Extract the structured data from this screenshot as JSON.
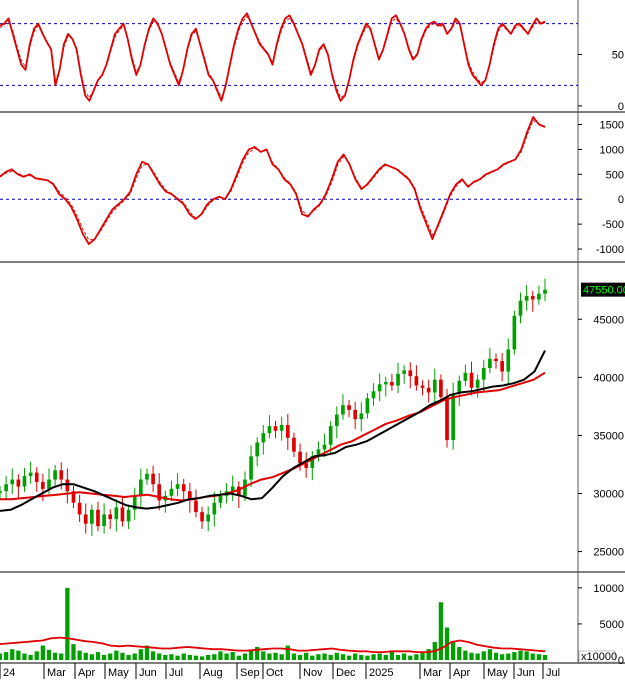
{
  "colors": {
    "background": "#ffffff",
    "panel_border": "#555555",
    "dashed_ref": "#0000cc",
    "indicator_line": "#e00000",
    "ma_slow": "#e00000",
    "ma_fast": "#000000",
    "candle_up": "#00a000",
    "candle_down": "#e00000",
    "price_badge_bg": "#000000",
    "price_badge_text": "#00ff00"
  },
  "x_axis": {
    "labels": [
      "24",
      "Mar",
      "Apr",
      "May",
      "Jun",
      "Jul",
      "Aug",
      "Sep",
      "Oct",
      "Nov",
      "Dec",
      "2025",
      "Mar",
      "Apr",
      "May",
      "Jun",
      "Jul"
    ]
  },
  "chart_data": [
    {
      "type": "line",
      "name": "oscillator",
      "y_ticks": [
        "50",
        "0"
      ],
      "ylim": [
        -3,
        100
      ],
      "ref_lines": [
        80,
        20
      ],
      "series": [
        {
          "style": "solid",
          "values": [
            78,
            80,
            85,
            70,
            55,
            40,
            35,
            60,
            75,
            80,
            70,
            62,
            55,
            20,
            35,
            60,
            70,
            65,
            55,
            30,
            10,
            5,
            15,
            25,
            30,
            40,
            55,
            70,
            75,
            80,
            65,
            45,
            30,
            40,
            60,
            75,
            85,
            80,
            70,
            55,
            40,
            30,
            20,
            35,
            55,
            70,
            75,
            60,
            45,
            30,
            25,
            15,
            5,
            20,
            40,
            60,
            75,
            85,
            90,
            80,
            70,
            60,
            55,
            50,
            40,
            60,
            75,
            85,
            88,
            80,
            70,
            60,
            45,
            30,
            40,
            55,
            60,
            50,
            30,
            15,
            5,
            10,
            25,
            45,
            60,
            70,
            80,
            75,
            60,
            45,
            55,
            70,
            85,
            88,
            80,
            70,
            55,
            45,
            50,
            65,
            75,
            80,
            82,
            78,
            80,
            70,
            75,
            85,
            80,
            60,
            40,
            30,
            25,
            20,
            25,
            40,
            60,
            75,
            80,
            75,
            70,
            78,
            80,
            75,
            70,
            78,
            85,
            80,
            82
          ]
        },
        {
          "style": "dashed",
          "values": [
            76,
            79,
            82,
            73,
            58,
            44,
            38,
            57,
            72,
            78,
            71,
            63,
            56,
            25,
            35,
            57,
            68,
            65,
            56,
            33,
            14,
            8,
            15,
            24,
            30,
            39,
            53,
            67,
            73,
            78,
            66,
            48,
            33,
            40,
            58,
            73,
            82,
            79,
            70,
            56,
            42,
            32,
            23,
            35,
            53,
            68,
            73,
            61,
            47,
            32,
            26,
            17,
            8,
            19,
            38,
            57,
            72,
            82,
            87,
            80,
            71,
            62,
            56,
            51,
            42,
            58,
            72,
            82,
            85,
            79,
            70,
            61,
            47,
            33,
            40,
            53,
            58,
            50,
            32,
            18,
            8,
            11,
            25,
            43,
            58,
            68,
            77,
            74,
            61,
            47,
            54,
            68,
            82,
            85,
            79,
            70,
            57,
            47,
            51,
            63,
            73,
            78,
            80,
            77,
            78,
            71,
            74,
            82,
            79,
            62,
            43,
            33,
            27,
            22,
            26,
            39,
            57,
            72,
            78,
            74,
            70,
            76,
            78,
            74,
            70,
            76,
            82,
            79,
            81
          ]
        }
      ]
    },
    {
      "type": "line",
      "name": "momentum",
      "y_ticks": [
        "1500",
        "1000",
        "500",
        "0",
        "-500",
        "-1000"
      ],
      "ylim": [
        -1200,
        1650
      ],
      "ref_lines": [
        0
      ],
      "series": [
        {
          "style": "solid",
          "values": [
            450,
            550,
            600,
            500,
            450,
            500,
            420,
            400,
            380,
            300,
            100,
            0,
            -150,
            -400,
            -700,
            -900,
            -800,
            -600,
            -400,
            -200,
            -100,
            0,
            150,
            500,
            750,
            700,
            500,
            300,
            150,
            100,
            0,
            -100,
            -300,
            -400,
            -300,
            -100,
            0,
            50,
            0,
            200,
            500,
            800,
            1000,
            1050,
            950,
            1000,
            700,
            600,
            400,
            300,
            100,
            -300,
            -350,
            -200,
            -100,
            100,
            400,
            750,
            900,
            700,
            400,
            200,
            300,
            450,
            600,
            700,
            650,
            600,
            500,
            400,
            200,
            -200,
            -500,
            -800,
            -500,
            -200,
            100,
            300,
            400,
            250,
            350,
            400,
            500,
            550,
            600,
            700,
            750,
            800,
            1000,
            1350,
            1650,
            1500,
            1450
          ]
        },
        {
          "style": "dashed",
          "values": [
            470,
            520,
            560,
            520,
            470,
            480,
            430,
            410,
            380,
            320,
            150,
            30,
            -100,
            -330,
            -600,
            -820,
            -800,
            -640,
            -440,
            -250,
            -130,
            -20,
            110,
            420,
            680,
            700,
            540,
            340,
            180,
            110,
            20,
            -70,
            -250,
            -380,
            -320,
            -140,
            -20,
            40,
            10,
            160,
            440,
            740,
            940,
            1020,
            960,
            980,
            740,
            610,
            430,
            320,
            130,
            -230,
            -330,
            -230,
            -120,
            60,
            340,
            680,
            860,
            720,
            440,
            230,
            280,
            420,
            570,
            680,
            660,
            610,
            520,
            420,
            230,
            -140,
            -430,
            -720,
            -540,
            -250,
            60,
            260,
            380,
            270,
            330,
            390,
            480,
            540,
            590,
            680,
            740,
            790,
            950,
            1290,
            1580,
            1510,
            1460
          ]
        }
      ]
    },
    {
      "type": "candlestick",
      "name": "price",
      "y_ticks": [
        "45000",
        "40000",
        "35000",
        "30000",
        "25000"
      ],
      "ylim": [
        23500,
        49500
      ],
      "last_price_label": "47550.00",
      "close": [
        30200,
        30800,
        31200,
        30600,
        31500,
        31800,
        31000,
        30400,
        31200,
        32000,
        31200,
        30200,
        29200,
        28200,
        27400,
        28600,
        27200,
        28200,
        27800,
        28800,
        27600,
        28600,
        29800,
        31200,
        31700,
        30800,
        29400,
        29800,
        30400,
        30800,
        30200,
        29400,
        28400,
        27600,
        28200,
        29200,
        29800,
        30200,
        30600,
        29800,
        31200,
        33200,
        34400,
        35200,
        35800,
        35400,
        35900,
        34800,
        33600,
        32600,
        32200,
        33200,
        33800,
        34200,
        35800,
        36800,
        37600,
        37200,
        36400,
        36900,
        38200,
        38800,
        39400,
        39600,
        39300,
        40300,
        40600,
        40100,
        39300,
        39100,
        38700,
        39800,
        38300,
        34600,
        38600,
        39700,
        40400,
        39100,
        39800,
        40800,
        41600,
        41400,
        40500,
        42400,
        45300,
        46600,
        47000,
        46700,
        47200,
        47550
      ],
      "ma_fast": [
        28500,
        28600,
        29000,
        29500,
        30000,
        30500,
        30800,
        30800,
        30500,
        30200,
        29800,
        29400,
        29000,
        28800,
        28700,
        28800,
        29000,
        29200,
        29500,
        29600,
        29800,
        29900,
        30000,
        29800,
        29500,
        29600,
        30500,
        31500,
        32200,
        32700,
        33200,
        33300,
        33500,
        34000,
        34200,
        34500,
        35000,
        35500,
        36000,
        36500,
        37000,
        37600,
        38000,
        38500,
        38700,
        38800,
        39000,
        39200,
        39300,
        39500,
        39800,
        40500,
        42300
      ],
      "ma_fast_anchor": 0,
      "ma_slow": [
        29500,
        29500,
        29600,
        29700,
        29800,
        29900,
        30000,
        30100,
        30000,
        29900,
        29800,
        29700,
        29800,
        29900,
        29700,
        29500,
        29400,
        29500,
        29700,
        29800,
        30000,
        30300,
        30800,
        31200,
        31400,
        31800,
        32200,
        32700,
        33200,
        33700,
        34200,
        34500,
        35000,
        35500,
        36000,
        36300,
        36700,
        37000,
        37500,
        38000,
        38300,
        38500,
        38700,
        38800,
        38900,
        39200,
        39500,
        39800,
        40400
      ]
    },
    {
      "type": "bar",
      "name": "volume",
      "y_ticks": [
        "10000",
        "5000",
        "0"
      ],
      "unit_label": "x10000",
      "ylim": [
        0,
        11500
      ],
      "values": [
        900,
        1100,
        1500,
        1300,
        900,
        700,
        1200,
        2000,
        1400,
        1000,
        900,
        10000,
        2200,
        1300,
        1000,
        800,
        1100,
        700,
        900,
        1300,
        1000,
        700,
        900,
        1500,
        2000,
        1200,
        900,
        700,
        800,
        600,
        900,
        700,
        600,
        500,
        700,
        800,
        1200,
        900,
        1100,
        600,
        900,
        1400,
        1800,
        1200,
        900,
        1000,
        800,
        2000,
        900,
        700,
        1000,
        600,
        800,
        900,
        700,
        1000,
        800,
        600,
        900,
        700,
        600,
        800,
        900,
        700,
        1200,
        700,
        900,
        600,
        800,
        1100,
        1500,
        2500,
        8000,
        4500,
        2500,
        1800,
        1300,
        1000,
        900,
        1200,
        1500,
        1000,
        800,
        900,
        1100,
        1300,
        1200,
        900,
        800,
        700
      ],
      "avg": [
        2200,
        2300,
        2400,
        2500,
        2600,
        2700,
        3000,
        3100,
        3000,
        2800,
        2600,
        2500,
        2300,
        2000,
        1900,
        2000,
        1900,
        1800,
        1700,
        1600,
        1600,
        1700,
        1800,
        1700,
        1600,
        1500,
        1500,
        1400,
        1300,
        1300,
        1400,
        1500,
        1600,
        1600,
        1500,
        1300,
        1300,
        1400,
        1500,
        1600,
        1400,
        1300,
        1200,
        1200,
        1100,
        1100,
        1200,
        1200,
        1200,
        1100,
        1100,
        1200,
        1700,
        2500,
        2700,
        2500,
        2100,
        1900,
        1700,
        1600,
        1600,
        1500,
        1400,
        1300,
        1200
      ]
    }
  ]
}
